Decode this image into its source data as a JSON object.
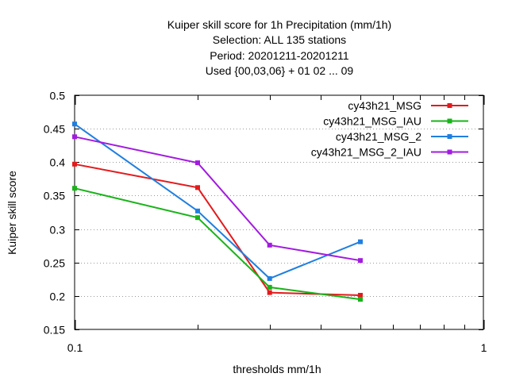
{
  "chart_data": {
    "type": "line",
    "title_lines": [
      "Kuiper skill score  for 1h Precipitation (mm/1h)",
      "Selection: ALL    135 stations",
      "Period: 20201211-20201211",
      "Used {00,03,06} + 01 02 ... 09"
    ],
    "xlabel": "thresholds mm/1h",
    "ylabel": "Kuiper skill score",
    "x_scale": "log",
    "xlim": [
      0.1,
      1
    ],
    "ylim": [
      0.15,
      0.5
    ],
    "x_ticks": [
      0.1,
      1
    ],
    "x_tick_labels": [
      "0.1",
      "1"
    ],
    "x_minor_ticks": [
      0.2,
      0.3,
      0.4,
      0.5,
      0.6,
      0.7,
      0.8,
      0.9
    ],
    "y_ticks": [
      0.15,
      0.2,
      0.25,
      0.3,
      0.35,
      0.4,
      0.45,
      0.5
    ],
    "y_tick_labels": [
      "0.15",
      "0.2",
      "0.25",
      "0.3",
      "0.35",
      "0.4",
      "0.45",
      "0.5"
    ],
    "grid": "horizontal dotted",
    "legend_position": "top-right",
    "x": [
      0.1,
      0.2,
      0.3,
      0.5
    ],
    "series": [
      {
        "name": "cy43h21_MSG",
        "color": "#e41a1c",
        "values": [
          0.397,
          0.362,
          0.205,
          0.201
        ]
      },
      {
        "name": "cy43h21_MSG_IAU",
        "color": "#1ab31a",
        "values": [
          0.361,
          0.317,
          0.213,
          0.195
        ]
      },
      {
        "name": "cy43h21_MSG_2",
        "color": "#1f7fe0",
        "values": [
          0.457,
          0.327,
          0.226,
          0.281
        ]
      },
      {
        "name": "cy43h21_MSG_2_IAU",
        "color": "#a21be0",
        "values": [
          0.438,
          0.399,
          0.276,
          0.253
        ]
      }
    ]
  }
}
